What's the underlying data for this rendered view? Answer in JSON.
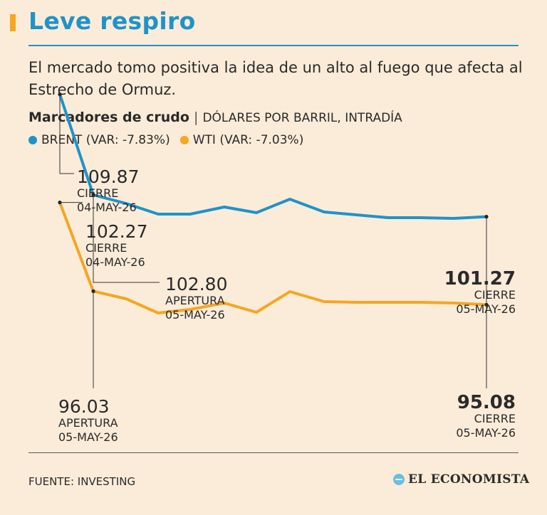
{
  "header": {
    "title": "Leve respiro",
    "subtitle": "El mercado tomo positiva la idea de un alto al fuego que afecta al Estrecho de Ormuz."
  },
  "chart_heading": {
    "bold": "Marcadores de crudo",
    "separator": "|",
    "unit": "DÓLARES POR BARRIL, INTRADÍA"
  },
  "legend": [
    {
      "label": "BRENT (VAR: -7.83%)",
      "color": "#1f93c8"
    },
    {
      "label": "WTI (VAR: -7.03%)",
      "color": "#f5a623"
    }
  ],
  "chart_data": {
    "type": "line",
    "x_points": 14,
    "ylim": [
      88,
      112
    ],
    "series": [
      {
        "name": "BRENT",
        "color": "#1f93c8",
        "values": [
          109.87,
          102.8,
          102.2,
          101.45,
          101.45,
          101.95,
          101.55,
          102.5,
          101.6,
          101.4,
          101.2,
          101.2,
          101.15,
          101.27
        ]
      },
      {
        "name": "WTI",
        "color": "#f5a623",
        "values": [
          102.27,
          96.03,
          95.5,
          94.5,
          94.75,
          95.2,
          94.55,
          96.0,
          95.3,
          95.25,
          95.25,
          95.25,
          95.2,
          95.08
        ]
      }
    ],
    "annotations": [
      {
        "value": "109.87",
        "label": "CIERRE",
        "date": "04-MAY-26"
      },
      {
        "value": "102.27",
        "label": "CIERRE",
        "date": "04-MAY-26"
      },
      {
        "value": "102.80",
        "label": "APERTURA",
        "date": "05-MAY-26"
      },
      {
        "value": "96.03",
        "label": "APERTURA",
        "date": "05-MAY-26"
      },
      {
        "value": "101.27",
        "label": "CIERRE",
        "date": "05-MAY-26"
      },
      {
        "value": "95.08",
        "label": "CIERRE",
        "date": "05-MAY-26"
      }
    ]
  },
  "footer": {
    "source": "FUENTE: INVESTING",
    "logo_text": "EL ECONOMISTA"
  }
}
